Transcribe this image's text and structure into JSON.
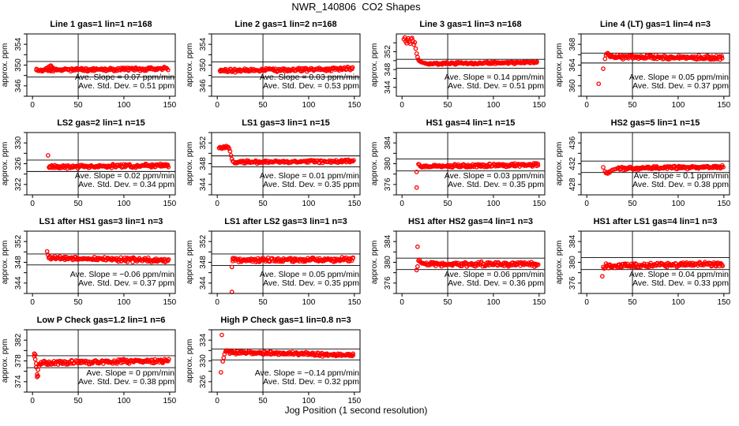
{
  "title": "NWR_140806  CO2 Shapes",
  "xlabel": "Jog Position (1 second resolution)",
  "axes": {
    "xticks": [
      0,
      50,
      100,
      150
    ],
    "xtick_labels": [
      "0",
      "50",
      "100",
      "150"
    ],
    "xlim": [
      -6.2,
      156.2
    ],
    "axis_color": "#000000",
    "grid": "off"
  },
  "marker": {
    "shape": "open-circle",
    "color": "#FF0000",
    "radius": 2.2
  },
  "chart_data": [
    {
      "type": "scatter",
      "title": "Line 1 gas=1 lin=1 n=168",
      "ylabel": "approx. ppm",
      "yticks": [
        344,
        346,
        348,
        350,
        352,
        354,
        356
      ],
      "ytick_labels": [
        "",
        "346",
        "",
        "350",
        "",
        "354",
        ""
      ],
      "ylim": [
        344,
        356
      ],
      "hlines": [
        350.7,
        347.7
      ],
      "vline": 50,
      "slope_ppm_per_min": 0.07,
      "std_dev_ppm": 0.51,
      "annotations": [
        "Ave. Slope =  0.07  ppm/min",
        "Ave. Std. Dev. =  0.51  ppm"
      ],
      "points": [
        [
          15,
          349.4
        ],
        [
          17,
          349.6
        ],
        [
          19,
          349.8
        ],
        [
          20,
          349.9
        ],
        [
          21,
          349.7
        ],
        [
          22,
          349.5
        ],
        [
          23,
          349.4
        ]
      ],
      "band": {
        "x0": 4,
        "x1": 148,
        "n": 170,
        "y0": 349.0,
        "y1": 349.3,
        "jitter": 0.18,
        "seed": 11
      }
    },
    {
      "type": "scatter",
      "title": "Line 2 gas=1 lin=2 n=168",
      "ylabel": "approx. ppm",
      "yticks": [
        344,
        346,
        348,
        350,
        352,
        354,
        356
      ],
      "ytick_labels": [
        "",
        "346",
        "",
        "350",
        "",
        "354",
        ""
      ],
      "ylim": [
        344,
        356
      ],
      "hlines": [
        350.6,
        347.7
      ],
      "vline": 50,
      "slope_ppm_per_min": 0.03,
      "std_dev_ppm": 0.53,
      "annotations": [
        "Ave. Slope =  0.03  ppm/min",
        "Ave. Std. Dev. =  0.53  ppm"
      ],
      "points": [
        [
          3,
          348.9
        ],
        [
          5,
          349.0
        ],
        [
          30,
          349.3
        ],
        [
          60,
          349.2
        ],
        [
          120,
          349.3
        ]
      ],
      "band": {
        "x0": 3,
        "x1": 148,
        "n": 170,
        "y0": 348.9,
        "y1": 349.3,
        "jitter": 0.2,
        "seed": 22
      }
    },
    {
      "type": "scatter",
      "title": "Line 3 gas=1 lin=3 n=168",
      "ylabel": "approx. ppm",
      "yticks": [
        344,
        346,
        348,
        350,
        352,
        354
      ],
      "ytick_labels": [
        "344",
        "",
        "348",
        "",
        "352",
        ""
      ],
      "ylim": [
        342,
        356
      ],
      "hlines": [
        350.3,
        348.3
      ],
      "vline": 50,
      "slope_ppm_per_min": 0.14,
      "std_dev_ppm": 0.51,
      "annotations": [
        "Ave. Slope =  0.14  ppm/min",
        "Ave. Std. Dev. =  0.51  ppm"
      ],
      "points": [
        [
          2,
          354.8
        ],
        [
          3,
          355.2
        ],
        [
          4,
          354.3
        ],
        [
          5,
          353.9
        ],
        [
          6,
          354.6
        ],
        [
          7,
          355.0
        ],
        [
          8,
          354.2
        ],
        [
          9,
          353.8
        ],
        [
          10,
          354.9
        ],
        [
          11,
          355.1
        ],
        [
          12,
          354.4
        ],
        [
          13,
          353.6
        ],
        [
          14,
          354.1
        ],
        [
          15,
          352.7
        ],
        [
          16,
          351.6
        ],
        [
          17,
          350.8
        ],
        [
          18,
          350.2
        ],
        [
          19,
          349.9
        ],
        [
          20,
          349.8
        ],
        [
          21,
          349.7
        ],
        [
          22,
          349.6
        ],
        [
          24,
          349.5
        ]
      ],
      "band": {
        "x0": 25,
        "x1": 148,
        "n": 150,
        "y0": 349.3,
        "y1": 349.6,
        "jitter": 0.15,
        "seed": 33
      }
    },
    {
      "type": "scatter",
      "title": "Line 4 (LT) gas=1 lin=4 n=3",
      "ylabel": "approx. ppm",
      "yticks": [
        358,
        360,
        362,
        364,
        366,
        368,
        370
      ],
      "ytick_labels": [
        "",
        "360",
        "",
        "364",
        "",
        "368",
        ""
      ],
      "ylim": [
        358,
        370
      ],
      "hlines": [
        366.3,
        364.4
      ],
      "vline": 50,
      "slope_ppm_per_min": 0.05,
      "std_dev_ppm": 0.37,
      "annotations": [
        "Ave. Slope =  0.05  ppm/min",
        "Ave. Std. Dev. =  0.37  ppm"
      ],
      "points": [
        [
          13,
          360.4
        ],
        [
          18,
          363.3
        ],
        [
          20,
          365.2
        ],
        [
          21,
          365.9
        ],
        [
          22,
          366.2
        ],
        [
          23,
          366.3
        ],
        [
          24,
          366.0
        ],
        [
          25,
          365.8
        ]
      ],
      "band": {
        "x0": 26,
        "x1": 148,
        "n": 150,
        "y0": 365.6,
        "y1": 365.4,
        "jitter": 0.25,
        "seed": 44
      }
    },
    {
      "type": "scatter",
      "title": "LS2 gas=2 lin=1 n=15",
      "ylabel": "approx. ppm",
      "yticks": [
        320,
        322,
        324,
        326,
        328,
        330,
        332
      ],
      "ytick_labels": [
        "",
        "322",
        "",
        "326",
        "",
        "330",
        ""
      ],
      "ylim": [
        320,
        332
      ],
      "hlines": [
        326.7,
        324.5
      ],
      "vline": 50,
      "slope_ppm_per_min": 0.02,
      "std_dev_ppm": 0.34,
      "annotations": [
        "Ave. Slope =  0.02  ppm/min",
        "Ave. Std. Dev. =  0.34  ppm"
      ],
      "points": [
        [
          17,
          327.6
        ],
        [
          18,
          325.3
        ],
        [
          19,
          325.5
        ]
      ],
      "band": {
        "x0": 19,
        "x1": 149,
        "n": 150,
        "y0": 325.4,
        "y1": 325.7,
        "jitter": 0.2,
        "seed": 55
      }
    },
    {
      "type": "scatter",
      "title": "LS1 gas=3 lin=1 n=15",
      "ylabel": "approx. ppm",
      "yticks": [
        342,
        344,
        346,
        348,
        350,
        352,
        354
      ],
      "ytick_labels": [
        "",
        "344",
        "",
        "348",
        "",
        "352",
        ""
      ],
      "ylim": [
        342,
        354
      ],
      "hlines": [
        349.5,
        347.4
      ],
      "vline": 50,
      "slope_ppm_per_min": 0.01,
      "std_dev_ppm": 0.35,
      "annotations": [
        "Ave. Slope =  0.01  ppm/min",
        "Ave. Std. Dev. =  0.35  ppm"
      ],
      "points": [
        [
          2,
          351.0
        ],
        [
          3,
          351.2
        ],
        [
          4,
          351.1
        ],
        [
          5,
          350.9
        ],
        [
          6,
          351.1
        ],
        [
          7,
          351.3
        ],
        [
          8,
          351.0
        ],
        [
          9,
          351.2
        ],
        [
          10,
          351.4
        ],
        [
          11,
          351.1
        ],
        [
          12,
          351.2
        ],
        [
          13,
          350.9
        ],
        [
          14,
          350.4
        ],
        [
          15,
          349.6
        ],
        [
          16,
          348.9
        ],
        [
          17,
          348.5
        ]
      ],
      "band": {
        "x0": 18,
        "x1": 149,
        "n": 150,
        "y0": 348.3,
        "y1": 348.5,
        "jitter": 0.18,
        "seed": 66
      }
    },
    {
      "type": "scatter",
      "title": "HS1 gas=4 lin=1 n=15",
      "ylabel": "approx. ppm",
      "yticks": [
        374,
        376,
        378,
        380,
        382,
        384,
        386
      ],
      "ytick_labels": [
        "",
        "376",
        "",
        "380",
        "",
        "384",
        ""
      ],
      "ylim": [
        374,
        386
      ],
      "hlines": [
        380.9,
        378.6
      ],
      "vline": 50,
      "slope_ppm_per_min": 0.03,
      "std_dev_ppm": 0.35,
      "annotations": [
        "Ave. Slope =  0.03  ppm/min",
        "Ave. Std. Dev. =  0.35  ppm"
      ],
      "points": [
        [
          16,
          375.4
        ],
        [
          16,
          378.4
        ],
        [
          18,
          379.9
        ],
        [
          19,
          379.8
        ],
        [
          20,
          379.5
        ],
        [
          21,
          379.4
        ],
        [
          22,
          379.3
        ]
      ],
      "band": {
        "x0": 23,
        "x1": 149,
        "n": 150,
        "y0": 379.5,
        "y1": 379.8,
        "jitter": 0.2,
        "seed": 77
      }
    },
    {
      "type": "scatter",
      "title": "HS2 gas=5 lin=1 n=15",
      "ylabel": "approx. ppm",
      "yticks": [
        426,
        428,
        430,
        432,
        434,
        436,
        438
      ],
      "ytick_labels": [
        "",
        "428",
        "",
        "432",
        "",
        "436",
        ""
      ],
      "ylim": [
        426,
        438
      ],
      "hlines": [
        432.5,
        430.3
      ],
      "vline": 50,
      "slope_ppm_per_min": 0.1,
      "std_dev_ppm": 0.38,
      "annotations": [
        "Ave. Slope =  0.1  ppm/min",
        "Ave. Std. Dev. =  0.38  ppm"
      ],
      "points": [
        [
          18,
          431.3
        ],
        [
          20,
          430.5
        ],
        [
          21,
          430.2
        ],
        [
          22,
          430.3
        ],
        [
          23,
          430.1
        ],
        [
          24,
          430.4
        ],
        [
          25,
          430.3
        ],
        [
          26,
          430.6
        ],
        [
          28,
          430.8
        ],
        [
          30,
          430.9
        ],
        [
          32,
          431.0
        ],
        [
          34,
          431.1
        ]
      ],
      "band": {
        "x0": 35,
        "x1": 149,
        "n": 140,
        "y0": 431.1,
        "y1": 431.4,
        "jitter": 0.18,
        "seed": 88
      }
    },
    {
      "type": "scatter",
      "title": "LS1 after HS1 gas=3 lin=1 n=3",
      "ylabel": "approx. ppm",
      "yticks": [
        342,
        344,
        346,
        348,
        350,
        352,
        354
      ],
      "ytick_labels": [
        "",
        "344",
        "",
        "348",
        "",
        "352",
        ""
      ],
      "ylim": [
        342,
        354
      ],
      "hlines": [
        349.6,
        347.5
      ],
      "vline": 50,
      "slope_ppm_per_min": -0.06,
      "std_dev_ppm": 0.37,
      "annotations": [
        "Ave. Slope =  −0.06  ppm/min",
        "Ave. Std. Dev. =  0.37  ppm"
      ],
      "points": [
        [
          16,
          350.1
        ],
        [
          17,
          349.4
        ],
        [
          18,
          348.9
        ]
      ],
      "band": {
        "x0": 18,
        "x1": 149,
        "n": 150,
        "y0": 348.8,
        "y1": 348.4,
        "jitter": 0.25,
        "seed": 99
      }
    },
    {
      "type": "scatter",
      "title": "LS1 after LS2 gas=3 lin=1 n=3",
      "ylabel": "approx. ppm",
      "yticks": [
        342,
        344,
        346,
        348,
        350,
        352,
        354
      ],
      "ytick_labels": [
        "",
        "344",
        "",
        "348",
        "",
        "352",
        ""
      ],
      "ylim": [
        342,
        354
      ],
      "hlines": [
        349.6,
        347.4
      ],
      "vline": 50,
      "slope_ppm_per_min": 0.05,
      "std_dev_ppm": 0.35,
      "annotations": [
        "Ave. Slope =  0.05  ppm/min",
        "Ave. Std. Dev. =  0.35  ppm"
      ],
      "points": [
        [
          16,
          347.1
        ],
        [
          16,
          342.3
        ],
        [
          17,
          348.8
        ]
      ],
      "band": {
        "x0": 17,
        "x1": 149,
        "n": 150,
        "y0": 348.4,
        "y1": 348.6,
        "jitter": 0.25,
        "seed": 110
      }
    },
    {
      "type": "scatter",
      "title": "HS1 after HS2 gas=4 lin=1 n=3",
      "ylabel": "approx. ppm",
      "yticks": [
        374,
        376,
        378,
        380,
        382,
        384,
        386
      ],
      "ytick_labels": [
        "",
        "376",
        "",
        "380",
        "",
        "384",
        ""
      ],
      "ylim": [
        374,
        386
      ],
      "hlines": [
        380.8,
        378.6
      ],
      "vline": 50,
      "slope_ppm_per_min": 0.06,
      "std_dev_ppm": 0.36,
      "annotations": [
        "Ave. Slope =  0.06  ppm/min",
        "Ave. Std. Dev. =  0.36  ppm"
      ],
      "points": [
        [
          17,
          383.0
        ],
        [
          16,
          378.5
        ],
        [
          17,
          379.2
        ],
        [
          18,
          380.3
        ],
        [
          19,
          380.5
        ],
        [
          20,
          380.1
        ],
        [
          21,
          379.9
        ],
        [
          22,
          379.8
        ]
      ],
      "band": {
        "x0": 23,
        "x1": 149,
        "n": 150,
        "y0": 379.7,
        "y1": 379.6,
        "jitter": 0.25,
        "seed": 121
      }
    },
    {
      "type": "scatter",
      "title": "HS1 after LS1 gas=4 lin=1 n=3",
      "ylabel": "approx. ppm",
      "yticks": [
        374,
        376,
        378,
        380,
        382,
        384,
        386
      ],
      "ytick_labels": [
        "",
        "376",
        "",
        "380",
        "",
        "384",
        ""
      ],
      "ylim": [
        374,
        386
      ],
      "hlines": [
        380.9,
        378.6
      ],
      "vline": 50,
      "slope_ppm_per_min": 0.04,
      "std_dev_ppm": 0.33,
      "annotations": [
        "Ave. Slope =  0.04  ppm/min",
        "Ave. Std. Dev. =  0.33  ppm"
      ],
      "points": [
        [
          17,
          377.3
        ],
        [
          18,
          379.1
        ],
        [
          19,
          378.8
        ],
        [
          20,
          378.9
        ]
      ],
      "band": {
        "x0": 21,
        "x1": 149,
        "n": 150,
        "y0": 379.3,
        "y1": 379.7,
        "jitter": 0.25,
        "seed": 132
      }
    },
    {
      "type": "scatter",
      "title": "Low P Check gas=1.2 lin=1 n=6",
      "ylabel": "approx. ppm",
      "yticks": [
        372,
        374,
        376,
        378,
        380,
        382,
        384
      ],
      "ytick_labels": [
        "",
        "374",
        "",
        "378",
        "",
        "382",
        ""
      ],
      "ylim": [
        372,
        384
      ],
      "hlines": [
        379.0,
        376.7
      ],
      "vline": 50,
      "slope_ppm_per_min": 0,
      "std_dev_ppm": 0.38,
      "annotations": [
        "Ave. Slope =  0  ppm/min",
        "Ave. Std. Dev. =  0.38  ppm"
      ],
      "points": [
        [
          2,
          379.4
        ],
        [
          2,
          378.9
        ],
        [
          3,
          379.2
        ],
        [
          3,
          378.3
        ],
        [
          4,
          377.5
        ],
        [
          4,
          376.8
        ],
        [
          5,
          375.4
        ],
        [
          5,
          374.9
        ],
        [
          6,
          375.1
        ],
        [
          6,
          376.3
        ],
        [
          7,
          377.0
        ]
      ],
      "band": {
        "x0": 7,
        "x1": 149,
        "n": 160,
        "y0": 377.6,
        "y1": 378.0,
        "jitter": 0.25,
        "seed": 143
      }
    },
    {
      "type": "scatter",
      "title": "High P Check gas=1 lin=0.8 n=3",
      "ylabel": "approx. ppm",
      "yticks": [
        324,
        326,
        328,
        330,
        332,
        334,
        336
      ],
      "ytick_labels": [
        "",
        "326",
        "",
        "330",
        "",
        "334",
        ""
      ],
      "ylim": [
        324,
        336
      ],
      "hlines": [
        332.3,
        330.2
      ],
      "vline": 50,
      "slope_ppm_per_min": -0.14,
      "std_dev_ppm": 0.32,
      "annotations": [
        "Ave. Slope =  −0.14  ppm/min",
        "Ave. Std. Dev. =  0.32  ppm"
      ],
      "points": [
        [
          5,
          335.0
        ],
        [
          4,
          327.8
        ],
        [
          6,
          329.9
        ],
        [
          7,
          330.6
        ],
        [
          8,
          331.3
        ],
        [
          9,
          331.8
        ],
        [
          10,
          332.0
        ],
        [
          11,
          332.0
        ],
        [
          12,
          331.9
        ]
      ],
      "band": {
        "x0": 13,
        "x1": 149,
        "n": 160,
        "y0": 331.7,
        "y1": 331.1,
        "jitter": 0.2,
        "seed": 154
      }
    }
  ]
}
